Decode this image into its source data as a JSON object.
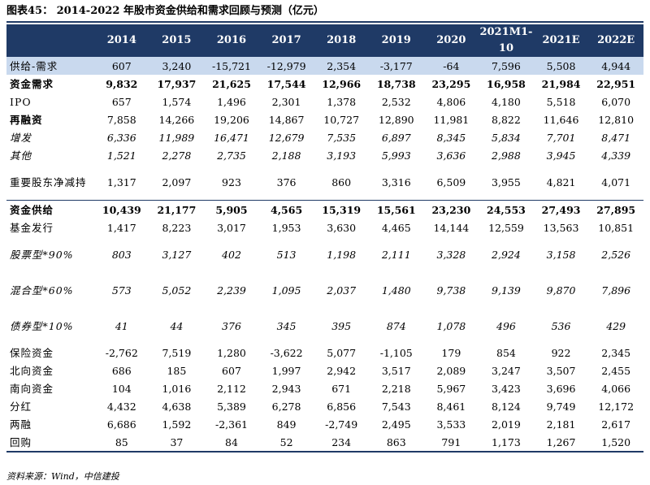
{
  "title": "图表45：   2014-2022 年股市资金供给和需求回顾与预测（亿元）",
  "headers": [
    "",
    "2014",
    "2015",
    "2016",
    "2017",
    "2018",
    "2019",
    "2020",
    "2021M1-10",
    "2021E",
    "2022E"
  ],
  "rows": [
    {
      "label": "供给-需求",
      "style": "hl",
      "h": 1,
      "values": [
        "607",
        "3,240",
        "-15,721",
        "-12,979",
        "2,354",
        "-3,177",
        "-64",
        "7,596",
        "5,508",
        "4,944"
      ]
    },
    {
      "label": "资金需求",
      "style": "bold",
      "h": 1,
      "values": [
        "9,832",
        "17,937",
        "21,625",
        "17,544",
        "12,966",
        "18,738",
        "23,295",
        "16,958",
        "21,984",
        "22,951"
      ]
    },
    {
      "label": "IPO",
      "style": "",
      "h": 1,
      "values": [
        "657",
        "1,574",
        "1,496",
        "2,301",
        "1,378",
        "2,532",
        "4,806",
        "4,180",
        "5,518",
        "6,070"
      ]
    },
    {
      "label": "再融资",
      "style": "boldlabel",
      "h": 1,
      "values": [
        "7,858",
        "14,266",
        "19,206",
        "14,867",
        "10,727",
        "12,890",
        "11,981",
        "8,822",
        "11,646",
        "12,810"
      ]
    },
    {
      "label": "增发",
      "style": "ital",
      "h": 1,
      "values": [
        "6,336",
        "11,989",
        "16,471",
        "12,679",
        "7,535",
        "6,897",
        "8,345",
        "5,834",
        "7,701",
        "8,471"
      ]
    },
    {
      "label": "其他",
      "style": "ital",
      "h": 1,
      "values": [
        "1,521",
        "2,278",
        "2,735",
        "2,188",
        "3,193",
        "5,993",
        "3,636",
        "2,988",
        "3,945",
        "4,339"
      ]
    },
    {
      "label": "重要股东净减持",
      "style": "",
      "h": 2,
      "values": [
        "1,317",
        "2,097",
        "923",
        "376",
        "860",
        "3,316",
        "6,509",
        "3,955",
        "4,821",
        "4,071"
      ]
    },
    {
      "label": "资金供给",
      "style": "bold sepTop",
      "h": 1,
      "values": [
        "10,439",
        "21,177",
        "5,905",
        "4,565",
        "15,319",
        "15,561",
        "23,230",
        "24,553",
        "27,493",
        "27,895"
      ]
    },
    {
      "label": "基金发行",
      "style": "",
      "h": 1,
      "values": [
        "1,417",
        "8,223",
        "3,017",
        "1,953",
        "3,630",
        "4,465",
        "14,144",
        "12,559",
        "13,563",
        "10,851"
      ]
    },
    {
      "label": "股票型*90%",
      "style": "ital",
      "h": 2,
      "values": [
        "803",
        "3,127",
        "402",
        "513",
        "1,198",
        "2,111",
        "3,328",
        "2,924",
        "3,158",
        "2,526"
      ]
    },
    {
      "label": "混合型*60%",
      "style": "ital",
      "h": 2,
      "values": [
        "573",
        "5,052",
        "2,239",
        "1,095",
        "2,037",
        "1,480",
        "9,738",
        "9,139",
        "9,870",
        "7,896"
      ]
    },
    {
      "label": "债券型*10%",
      "style": "ital",
      "h": 2,
      "values": [
        "41",
        "44",
        "376",
        "345",
        "395",
        "874",
        "1,078",
        "496",
        "536",
        "429"
      ]
    },
    {
      "label": "保险资金",
      "style": "",
      "h": 1,
      "values": [
        "-2,762",
        "7,519",
        "1,280",
        "-3,622",
        "5,077",
        "-1,105",
        "179",
        "854",
        "922",
        "2,345"
      ]
    },
    {
      "label": "北向资金",
      "style": "",
      "h": 1,
      "values": [
        "686",
        "185",
        "607",
        "1,997",
        "2,942",
        "3,517",
        "2,089",
        "3,247",
        "3,507",
        "2,455"
      ]
    },
    {
      "label": "南向资金",
      "style": "",
      "h": 1,
      "values": [
        "104",
        "1,016",
        "2,112",
        "2,943",
        "671",
        "2,218",
        "5,967",
        "3,423",
        "3,696",
        "4,066"
      ]
    },
    {
      "label": "分红",
      "style": "",
      "h": 1,
      "values": [
        "4,432",
        "4,638",
        "5,389",
        "6,278",
        "6,856",
        "7,543",
        "8,461",
        "8,124",
        "9,749",
        "12,172"
      ]
    },
    {
      "label": "两融",
      "style": "",
      "h": 1,
      "values": [
        "6,686",
        "1,592",
        "-2,361",
        "849",
        "-2,749",
        "2,495",
        "3,533",
        "2,019",
        "2,181",
        "2,617"
      ]
    },
    {
      "label": "回购",
      "style": "last",
      "h": 1,
      "values": [
        "85",
        "37",
        "84",
        "52",
        "234",
        "863",
        "791",
        "1,173",
        "1,267",
        "1,520"
      ]
    }
  ],
  "source": "资料来源：Wind，中信建投",
  "colors": {
    "header_bg": "#1f3a66",
    "highlight_bg": "#c9d9ee"
  }
}
